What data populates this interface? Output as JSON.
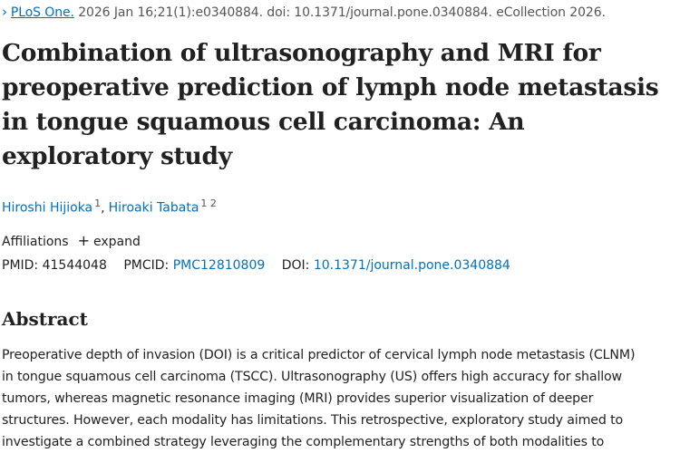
{
  "citation": {
    "journal": "PLoS One.",
    "details": "2026 Jan 16;21(1):e0340884. doi: 10.1371/journal.pone.0340884. eCollection 2026."
  },
  "article": {
    "title": "Combination of ultrasonography and MRI for preoperative prediction of lymph node metastasis in tongue squamous cell carcinoma: An exploratory study"
  },
  "authors": [
    {
      "name": "Hiroshi Hijioka",
      "sup": "1"
    },
    {
      "name": "Hiroaki Tabata",
      "sup": "1 2"
    }
  ],
  "affiliations": {
    "label": "Affiliations",
    "toggle": "expand"
  },
  "identifiers": {
    "pmid_label": "PMID:",
    "pmid": "41544048",
    "pmcid_label": "PMCID:",
    "pmcid": "PMC12810809",
    "doi_label": "DOI:",
    "doi": "10.1371/journal.pone.0340884"
  },
  "abstract": {
    "heading": "Abstract",
    "lines": [
      "Preoperative depth of invasion (DOI) is a critical predictor of cervical lymph node metastasis (CLNM)",
      "in tongue squamous cell carcinoma (TSCC). Ultrasonography (US) offers high accuracy for shallow",
      "tumors, whereas magnetic resonance imaging (MRI) provides superior visualization of deeper",
      "structures. However, each modality has limitations. This retrospective, exploratory study aimed to",
      "investigate a combined strategy leveraging the complementary strengths of both modalities to"
    ]
  },
  "colors": {
    "link": "#0071bc",
    "text": "#212121",
    "muted": "#555555"
  }
}
